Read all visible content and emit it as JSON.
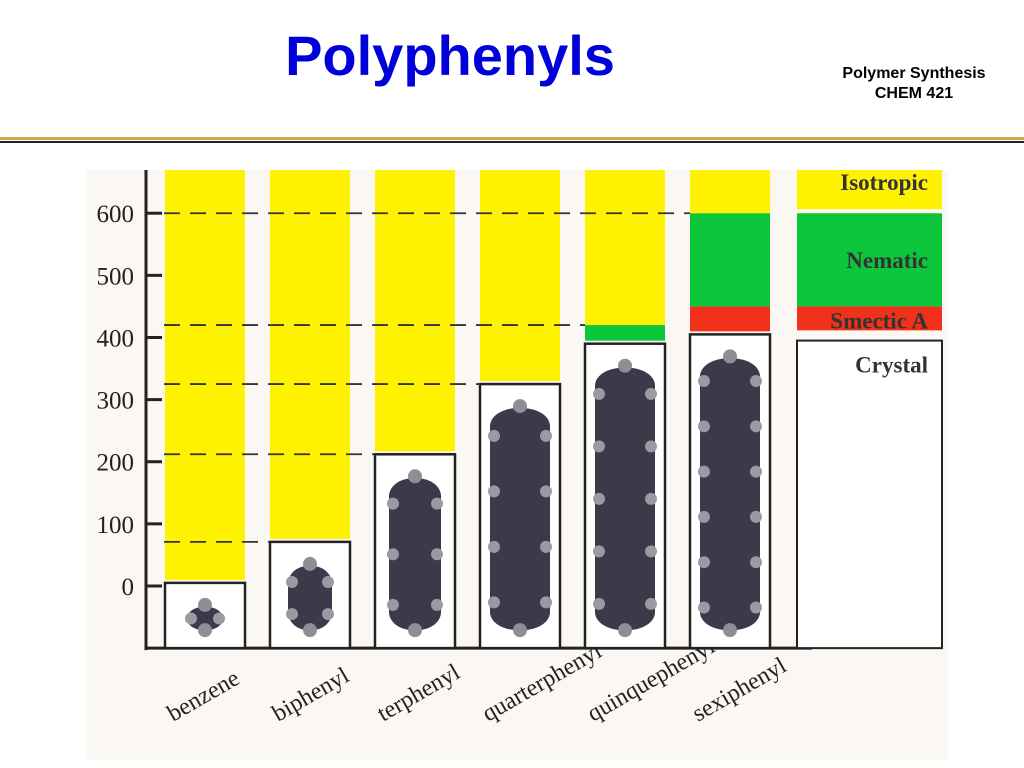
{
  "slide": {
    "title": "Polyphenyls",
    "course_name": "Polymer Synthesis",
    "course_code": "CHEM 421"
  },
  "colors": {
    "title": "#0000d8",
    "isotropic": "#fff200",
    "nematic": "#0bc63a",
    "smectic_a": "#f2311b",
    "crystal": "#ffffff",
    "molecule": "#3a3a4a",
    "divider": "#d7a640"
  },
  "chart_data": {
    "type": "bar",
    "categories": [
      "benzene",
      "biphenyl",
      "terphenyl",
      "quarterphenyl",
      "quinquephenyl",
      "sexiphenyl"
    ],
    "y_ticks": [
      0,
      100,
      200,
      300,
      400,
      500,
      600
    ],
    "ylim": [
      -100,
      700
    ],
    "xlabel": "",
    "ylabel": "",
    "grid": false,
    "legend_position": "right",
    "legend": [
      "Isotropic",
      "Nematic",
      "Smectic A",
      "Crystal"
    ],
    "series": [
      {
        "name": "Crystal",
        "values": [
          5,
          71,
          212,
          325,
          390,
          405
        ]
      },
      {
        "name": "Smectic A",
        "values": [
          0,
          0,
          0,
          0,
          0,
          450
        ]
      },
      {
        "name": "Nematic",
        "values": [
          0,
          0,
          0,
          0,
          420,
          600
        ]
      },
      {
        "name": "Isotropic",
        "values": [
          675,
          675,
          675,
          675,
          675,
          675
        ]
      }
    ],
    "melting_points": [
      5,
      71,
      212,
      325,
      390,
      405
    ],
    "transition_dashed_lines": [
      {
        "value": 600,
        "from_category": 0,
        "to_category": 5
      },
      {
        "value": 420,
        "from_category": 0,
        "to_category": 4
      },
      {
        "value": 325,
        "from_category": 0,
        "to_category": 3
      },
      {
        "value": 212,
        "from_category": 0,
        "to_category": 2
      },
      {
        "value": 71,
        "from_category": 0,
        "to_category": 1
      }
    ]
  }
}
